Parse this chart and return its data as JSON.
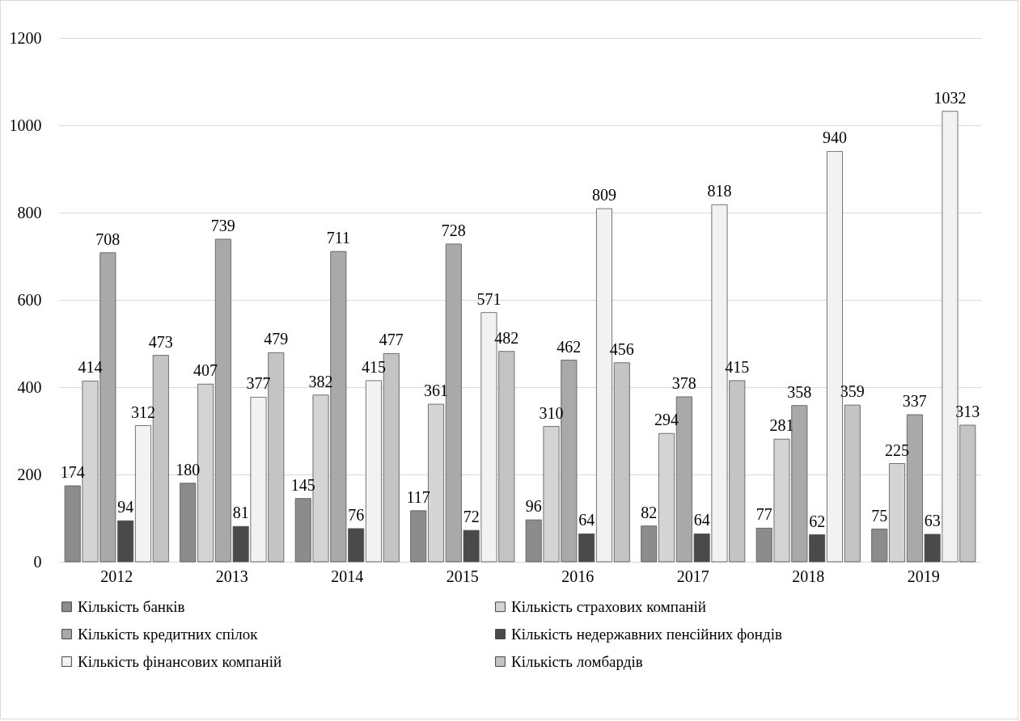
{
  "chart_data": {
    "type": "bar",
    "categories": [
      "2012",
      "2013",
      "2014",
      "2015",
      "2016",
      "2017",
      "2018",
      "2019"
    ],
    "series": [
      {
        "name": "Кількість банків",
        "color": "#8c8c8c",
        "values": [
          174,
          180,
          145,
          117,
          96,
          82,
          77,
          75
        ]
      },
      {
        "name": "Кількість страхових компаній",
        "color": "#d4d4d4",
        "values": [
          414,
          407,
          382,
          361,
          310,
          294,
          281,
          225
        ]
      },
      {
        "name": "Кількість кредитних спілок",
        "color": "#a9a9a9",
        "values": [
          708,
          739,
          711,
          728,
          462,
          378,
          358,
          337
        ]
      },
      {
        "name": "Кількість недержавних пенсійних фондів",
        "color": "#4a4a4a",
        "values": [
          94,
          81,
          76,
          72,
          64,
          64,
          62,
          63
        ]
      },
      {
        "name": "Кількість фінансових компаній",
        "color": "#f2f2f2",
        "values": [
          312,
          377,
          415,
          571,
          809,
          818,
          940,
          1032
        ]
      },
      {
        "name": "Кількість ломбардів",
        "color": "#c4c4c4",
        "values": [
          473,
          479,
          477,
          482,
          456,
          415,
          359,
          313
        ]
      }
    ],
    "ylim": [
      0,
      1200
    ],
    "yticks": [
      0,
      200,
      400,
      600,
      800,
      1000,
      1200
    ],
    "grid": "y",
    "legend": "bottom",
    "data_labels": true
  }
}
